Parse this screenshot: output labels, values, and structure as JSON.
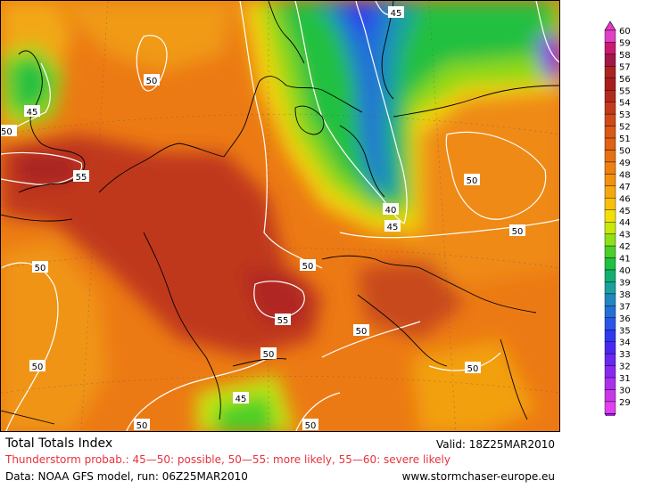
{
  "map": {
    "contour_labels": [
      "45",
      "50",
      "50",
      "45",
      "55",
      "50",
      "50",
      "50",
      "40",
      "45",
      "50",
      "55",
      "50",
      "50",
      "50",
      "50",
      "45",
      "50",
      "50"
    ]
  },
  "legend": {
    "values": [
      "60",
      "59",
      "58",
      "57",
      "56",
      "55",
      "54",
      "53",
      "52",
      "51",
      "50",
      "49",
      "48",
      "47",
      "46",
      "45",
      "44",
      "43",
      "42",
      "41",
      "40",
      "39",
      "38",
      "37",
      "36",
      "35",
      "34",
      "33",
      "32",
      "31",
      "30",
      "29"
    ],
    "colors": [
      "#e040c8",
      "#cc1870",
      "#a31848",
      "#ad2222",
      "#a91d1d",
      "#b32a1c",
      "#c23a1a",
      "#d04a18",
      "#d85a16",
      "#e06214",
      "#e87012",
      "#ee8010",
      "#f2920e",
      "#f5a80c",
      "#f8c00a",
      "#f2de08",
      "#c8e808",
      "#8ee018",
      "#4ad028",
      "#20c040",
      "#12b070",
      "#1aa0a0",
      "#2088c0",
      "#2470d8",
      "#2a55e8",
      "#3038f0",
      "#4a28f0",
      "#6828f0",
      "#8a28f0",
      "#aa30f0",
      "#c838e8",
      "#e040f0"
    ],
    "top_marker_color": "#e838c8",
    "bottom_marker_color": "#a028e0"
  },
  "footer": {
    "title": "Total Totals Index",
    "valid": "Valid: 18Z25MAR2010",
    "probability": "Thunderstorm probab.: 45—50: possible, 50—55: more likely, 55—60: severe likely",
    "data_source": "Data: NOAA GFS model, run: 06Z25MAR2010",
    "website": "www.stormchaser-europe.eu"
  }
}
